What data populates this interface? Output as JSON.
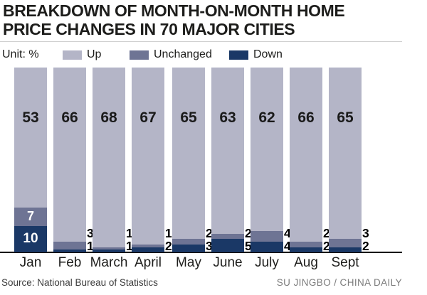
{
  "title": {
    "line1": "BREAKDOWN OF MONTH-ON-MONTH HOME",
    "line2": "PRICE CHANGES IN 70 MAJOR CITIES"
  },
  "legend": {
    "unit_label": "Unit: %",
    "items": [
      {
        "label": "Up",
        "color": "#b4b5c7"
      },
      {
        "label": "Unchanged",
        "color": "#6e7494"
      },
      {
        "label": "Down",
        "color": "#1a3866"
      }
    ]
  },
  "chart_data": {
    "type": "bar",
    "stacked": true,
    "title": "Breakdown of month-on-month home price changes in 70 major cities",
    "unit": "%",
    "categories": [
      "Jan",
      "Feb",
      "March",
      "April",
      "May",
      "June",
      "July",
      "Aug",
      "Sept"
    ],
    "series": [
      {
        "name": "Up",
        "color": "#b4b5c7",
        "values": [
          53,
          66,
          68,
          67,
          65,
          63,
          62,
          66,
          65
        ]
      },
      {
        "name": "Unchanged",
        "color": "#6e7494",
        "values": [
          7,
          3,
          1,
          1,
          2,
          2,
          4,
          2,
          3
        ]
      },
      {
        "name": "Down",
        "color": "#1a3866",
        "values": [
          10,
          1,
          1,
          2,
          3,
          5,
          4,
          2,
          2
        ]
      }
    ],
    "stack_total": 70,
    "ylim": [
      0,
      70
    ],
    "legend_position": "top",
    "grid": false,
    "label_note": "Jan shows Unchanged/Down values inside segments; other months show them beside the bar"
  },
  "footer": {
    "source": "Source: National Bureau of Statistics",
    "credit": "SU JINGBO / CHINA DAILY"
  }
}
